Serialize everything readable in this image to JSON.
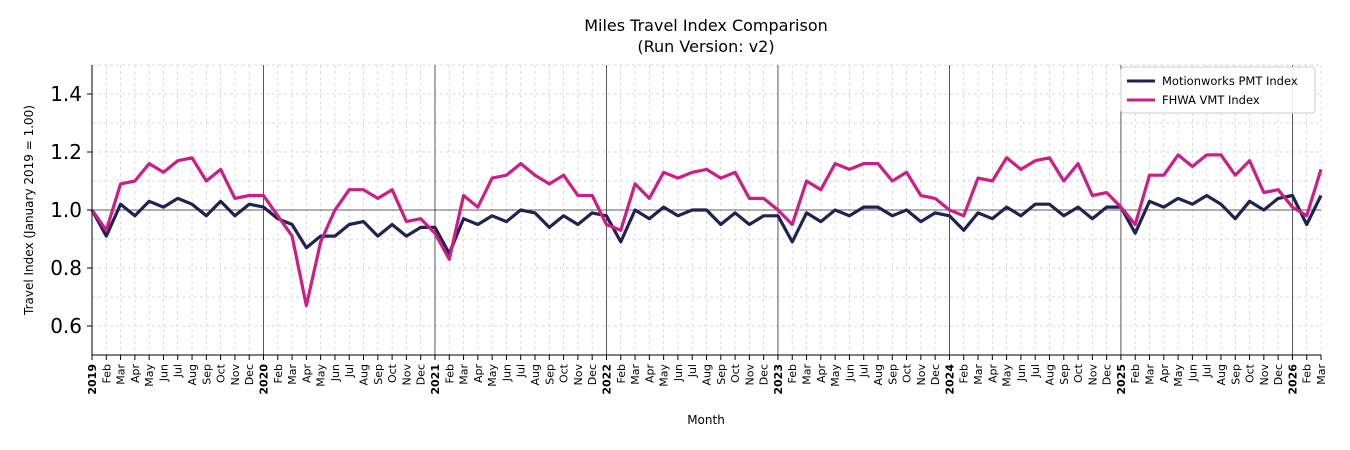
{
  "chart_data": {
    "type": "line",
    "title": "Miles Travel Index Comparison",
    "subtitle": "(Run Version: v2)",
    "xlabel": "Month",
    "ylabel": "Travel Index (January 2019 = 1.00)",
    "ylim": [
      0.5,
      1.5
    ],
    "yticks": [
      "0.6",
      "0.8",
      "1.0",
      "1.2",
      "1.4"
    ],
    "grid": true,
    "legend_position": "top-right",
    "reference_line": 1.0,
    "x": [
      "2019-01",
      "2019-02",
      "2019-03",
      "2019-04",
      "2019-05",
      "2019-06",
      "2019-07",
      "2019-08",
      "2019-09",
      "2019-10",
      "2019-11",
      "2019-12",
      "2020-01",
      "2020-02",
      "2020-03",
      "2020-04",
      "2020-05",
      "2020-06",
      "2020-07",
      "2020-08",
      "2020-09",
      "2020-10",
      "2020-11",
      "2020-12",
      "2021-01",
      "2021-02",
      "2021-03",
      "2021-04",
      "2021-05",
      "2021-06",
      "2021-07",
      "2021-08",
      "2021-09",
      "2021-10",
      "2021-11",
      "2021-12",
      "2022-01",
      "2022-02",
      "2022-03",
      "2022-04",
      "2022-05",
      "2022-06",
      "2022-07",
      "2022-08",
      "2022-09",
      "2022-10",
      "2022-11",
      "2022-12",
      "2023-01",
      "2023-02",
      "2023-03",
      "2023-04",
      "2023-05",
      "2023-06",
      "2023-07",
      "2023-08",
      "2023-09",
      "2023-10",
      "2023-11",
      "2023-12",
      "2024-01",
      "2024-02",
      "2024-03",
      "2024-04",
      "2024-05",
      "2024-06",
      "2024-07",
      "2024-08",
      "2024-09",
      "2024-10",
      "2024-11",
      "2024-12",
      "2025-01",
      "2025-02",
      "2025-03",
      "2025-04",
      "2025-05",
      "2025-06",
      "2025-07",
      "2025-08",
      "2025-09",
      "2025-10",
      "2025-11",
      "2025-12",
      "2026-01",
      "2026-02",
      "2026-03"
    ],
    "x_tick_labels": [
      "2019",
      "Feb",
      "Mar",
      "Apr",
      "May",
      "Jun",
      "Jul",
      "Aug",
      "Sep",
      "Oct",
      "Nov",
      "Dec",
      "2020",
      "Feb",
      "Mar",
      "Apr",
      "May",
      "Jun",
      "Jul",
      "Aug",
      "Sep",
      "Oct",
      "Nov",
      "Dec",
      "2021",
      "Feb",
      "Mar",
      "Apr",
      "May",
      "Jun",
      "Jul",
      "Aug",
      "Sep",
      "Oct",
      "Nov",
      "Dec",
      "2022",
      "Feb",
      "Mar",
      "Apr",
      "May",
      "Jun",
      "Jul",
      "Aug",
      "Sep",
      "Oct",
      "Nov",
      "Dec",
      "2023",
      "Feb",
      "Mar",
      "Apr",
      "May",
      "Jun",
      "Jul",
      "Aug",
      "Sep",
      "Oct",
      "Nov",
      "Dec",
      "2024",
      "Feb",
      "Mar",
      "Apr",
      "May",
      "Jun",
      "Jul",
      "Aug",
      "Sep",
      "Oct",
      "Nov",
      "Dec",
      "2025",
      "Feb",
      "Mar",
      "Apr",
      "May",
      "Jun",
      "Jul",
      "Aug",
      "Sep",
      "Oct",
      "Nov",
      "Dec",
      "2026",
      "Feb",
      "Mar"
    ],
    "series": [
      {
        "name": "Motionworks PMT Index",
        "color": "#1f2352",
        "values": [
          1.0,
          0.91,
          1.02,
          0.98,
          1.03,
          1.01,
          1.04,
          1.02,
          0.98,
          1.03,
          0.98,
          1.02,
          1.01,
          0.97,
          0.95,
          0.87,
          0.91,
          0.91,
          0.95,
          0.96,
          0.91,
          0.95,
          0.91,
          0.94,
          0.94,
          0.85,
          0.97,
          0.95,
          0.98,
          0.96,
          1.0,
          0.99,
          0.94,
          0.98,
          0.95,
          0.99,
          0.98,
          0.89,
          1.0,
          0.97,
          1.01,
          0.98,
          1.0,
          1.0,
          0.95,
          0.99,
          0.95,
          0.98,
          0.98,
          0.89,
          0.99,
          0.96,
          1.0,
          0.98,
          1.01,
          1.01,
          0.98,
          1.0,
          0.96,
          0.99,
          0.98,
          0.93,
          0.99,
          0.97,
          1.01,
          0.98,
          1.02,
          1.02,
          0.98,
          1.01,
          0.97,
          1.01,
          1.01,
          0.92,
          1.03,
          1.01,
          1.04,
          1.02,
          1.05,
          1.02,
          0.97,
          1.03,
          1.0,
          1.04,
          1.05,
          0.95,
          1.05
        ]
      },
      {
        "name": "FHWA VMT Index",
        "color": "#cd1d86",
        "values": [
          1.0,
          0.93,
          1.09,
          1.1,
          1.16,
          1.13,
          1.17,
          1.18,
          1.1,
          1.14,
          1.04,
          1.05,
          1.05,
          0.98,
          0.91,
          0.67,
          0.89,
          1.0,
          1.07,
          1.07,
          1.04,
          1.07,
          0.96,
          0.97,
          0.92,
          0.83,
          1.05,
          1.01,
          1.11,
          1.12,
          1.16,
          1.12,
          1.09,
          1.12,
          1.05,
          1.05,
          0.95,
          0.93,
          1.09,
          1.04,
          1.13,
          1.11,
          1.13,
          1.14,
          1.11,
          1.13,
          1.04,
          1.04,
          1.0,
          0.95,
          1.1,
          1.07,
          1.16,
          1.14,
          1.16,
          1.16,
          1.1,
          1.13,
          1.05,
          1.04,
          1.0,
          0.98,
          1.11,
          1.1,
          1.18,
          1.14,
          1.17,
          1.18,
          1.1,
          1.16,
          1.05,
          1.06,
          1.01,
          0.95,
          1.12,
          1.12,
          1.19,
          1.15,
          1.19,
          1.19,
          1.12,
          1.17,
          1.06,
          1.07,
          1.01,
          0.98,
          1.14
        ]
      }
    ]
  }
}
